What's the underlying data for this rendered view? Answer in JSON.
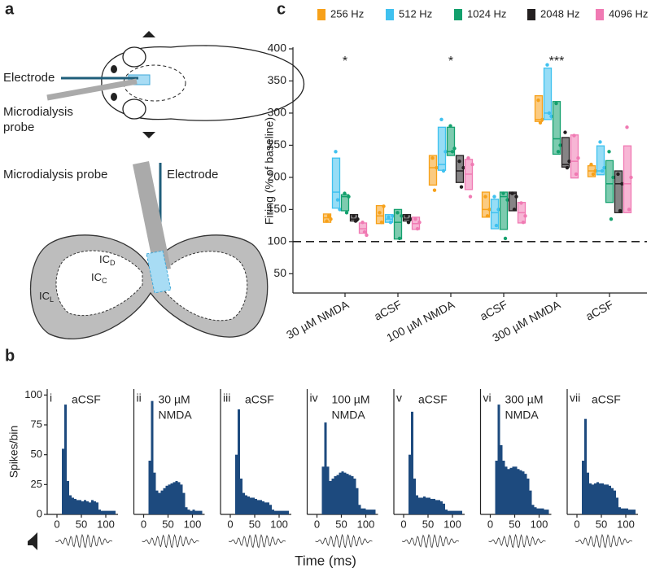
{
  "panel_a": {
    "letter": "a",
    "top_electrode": "Electrode",
    "top_probe": [
      "Microdialysis",
      "probe"
    ],
    "slice_probe": "Microdialysis probe",
    "slice_electrode": "Electrode",
    "icc": {
      "main": "IC",
      "sub": "C"
    },
    "icd": {
      "main": "IC",
      "sub": "D"
    },
    "icl": {
      "main": "IC",
      "sub": "L"
    }
  },
  "panel_b": {
    "letter": "b",
    "y_label": "Spikes/bin",
    "x_label": "Time (ms)"
  },
  "panel_c": {
    "letter": "c"
  },
  "chart_data": [
    {
      "type": "box",
      "y_label": "Firing (% of baseline)",
      "categories": [
        "30 µM NMDA",
        "aCSF",
        "100 µM NMDA",
        "aCSF",
        "300 µM NMDA",
        "aCSF"
      ],
      "significance": [
        "*",
        null,
        "*",
        null,
        "***",
        null
      ],
      "ylim": [
        20,
        400
      ],
      "yticks": [
        50,
        100,
        150,
        200,
        250,
        300,
        350,
        400
      ],
      "reference_line": 100,
      "series": [
        {
          "name": "256 Hz",
          "color": "#f7a11a",
          "q1": [
            130,
            128,
            188,
            138,
            287,
            201
          ],
          "median": [
            137,
            140,
            215,
            150,
            290,
            210
          ],
          "q3": [
            143,
            156,
            234,
            177,
            327,
            218
          ],
          "points": [
            [
              132,
              140,
              135
            ],
            [
              145,
              130,
              155
            ],
            [
              230,
              180,
              215
            ],
            [
              170,
              140,
              150
            ],
            [
              320,
              285,
              290
            ],
            [
              220,
              205,
              210
            ]
          ]
        },
        {
          "name": "512 Hz",
          "color": "#3fc1ef",
          "q1": [
            152,
            130,
            211,
            120,
            290,
            204
          ],
          "median": [
            177,
            135,
            220,
            145,
            300,
            210
          ],
          "q3": [
            230,
            142,
            278,
            166,
            370,
            249
          ],
          "points": [
            [
              240,
              165,
              150
            ],
            [
              138,
              130,
              140
            ],
            [
              290,
              210,
              240
            ],
            [
              170,
              125,
              150
            ],
            [
              375,
              300,
              295
            ],
            [
              255,
              210,
              215
            ]
          ]
        },
        {
          "name": "1024 Hz",
          "color": "#13a06d",
          "q1": [
            148,
            104,
            234,
            119,
            236,
            161
          ],
          "median": [
            170,
            130,
            240,
            170,
            260,
            190
          ],
          "q3": [
            173,
            150,
            278,
            177,
            318,
            226
          ],
          "points": [
            [
              175,
              145,
              170
            ],
            [
              145,
              105,
              140
            ],
            [
              280,
              240,
              245
            ],
            [
              175,
              105,
              165
            ],
            [
              315,
              240,
              250
            ],
            [
              240,
              135,
              200
            ]
          ]
        },
        {
          "name": "2048 Hz",
          "color": "#231f20",
          "q1": [
            132,
            132,
            192,
            148,
            216,
            145
          ],
          "median": [
            135,
            135,
            210,
            175,
            220,
            190
          ],
          "q3": [
            142,
            142,
            234,
            177,
            262,
            210
          ],
          "points": [
            [
              140,
              132,
              135
            ],
            [
              140,
              130,
              135
            ],
            [
              225,
              185,
              215
            ],
            [
              175,
              150,
              170
            ],
            [
              270,
              215,
              225
            ],
            [
              205,
              148,
              190
            ]
          ]
        },
        {
          "name": "4096 Hz",
          "color": "#f07ab3",
          "q1": [
            113,
            119,
            181,
            129,
            199,
            145
          ],
          "median": [
            120,
            128,
            205,
            145,
            225,
            190
          ],
          "q3": [
            129,
            138,
            228,
            161,
            266,
            249
          ],
          "points": [
            [
              130,
              115,
              110
            ],
            [
              135,
              120,
              130
            ],
            [
              230,
              170,
              220
            ],
            [
              160,
              130,
              140
            ],
            [
              265,
              205,
              230
            ],
            [
              278,
              150,
              200
            ]
          ]
        }
      ]
    },
    {
      "type": "histogram",
      "label": "i",
      "title": [
        "aCSF"
      ],
      "color": "#1d4a7e",
      "bins": [
        0,
        5,
        10,
        15,
        20,
        25,
        30,
        35,
        40,
        45,
        50,
        55,
        60,
        65,
        70,
        75,
        80,
        85,
        90,
        95,
        100,
        105,
        110,
        115,
        120
      ],
      "values": [
        0,
        0,
        55,
        92,
        28,
        16,
        14,
        13,
        12,
        12,
        11,
        12,
        11,
        10,
        12,
        11,
        10,
        4,
        3,
        3,
        3,
        3,
        3,
        3
      ],
      "xlim": [
        -20,
        125
      ],
      "xticks": [
        0,
        50,
        100
      ],
      "ylim": [
        0,
        105
      ],
      "yticks": [
        0,
        25,
        50,
        75,
        100
      ]
    },
    {
      "type": "histogram",
      "label": "ii",
      "title": [
        "30 µM",
        "NMDA"
      ],
      "color": "#1d4a7e",
      "bins": [
        0,
        5,
        10,
        15,
        20,
        25,
        30,
        35,
        40,
        45,
        50,
        55,
        60,
        65,
        70,
        75,
        80,
        85,
        90,
        95,
        100,
        105,
        110,
        115,
        120
      ],
      "values": [
        0,
        0,
        45,
        95,
        35,
        20,
        18,
        20,
        22,
        24,
        25,
        26,
        27,
        28,
        27,
        25,
        18,
        6,
        4,
        3,
        4,
        3,
        3,
        3
      ],
      "xlim": [
        -20,
        125
      ],
      "xticks": [
        0,
        50,
        100
      ],
      "ylim": [
        0,
        105
      ]
    },
    {
      "type": "histogram",
      "label": "iii",
      "title": [
        "aCSF"
      ],
      "color": "#1d4a7e",
      "bins": [
        0,
        5,
        10,
        15,
        20,
        25,
        30,
        35,
        40,
        45,
        50,
        55,
        60,
        65,
        70,
        75,
        80,
        85,
        90,
        95,
        100,
        105,
        110,
        115,
        120
      ],
      "values": [
        0,
        0,
        50,
        88,
        30,
        18,
        16,
        15,
        14,
        14,
        13,
        12,
        12,
        11,
        10,
        10,
        8,
        4,
        3,
        3,
        3,
        3,
        3,
        3
      ],
      "xlim": [
        -20,
        125
      ],
      "xticks": [
        0,
        50,
        100
      ],
      "ylim": [
        0,
        105
      ]
    },
    {
      "type": "histogram",
      "label": "iv",
      "title": [
        "100 µM",
        "NMDA"
      ],
      "color": "#1d4a7e",
      "bins": [
        0,
        5,
        10,
        15,
        20,
        25,
        30,
        35,
        40,
        45,
        50,
        55,
        60,
        65,
        70,
        75,
        80,
        85,
        90,
        95,
        100,
        105,
        110,
        115,
        120
      ],
      "values": [
        0,
        0,
        40,
        77,
        40,
        28,
        30,
        32,
        33,
        35,
        36,
        35,
        34,
        33,
        32,
        30,
        22,
        8,
        5,
        5,
        4,
        4,
        4,
        4
      ],
      "xlim": [
        -20,
        125
      ],
      "xticks": [
        0,
        50,
        100
      ],
      "ylim": [
        0,
        105
      ]
    },
    {
      "type": "histogram",
      "label": "v",
      "title": [
        "aCSF"
      ],
      "color": "#1d4a7e",
      "bins": [
        0,
        5,
        10,
        15,
        20,
        25,
        30,
        35,
        40,
        45,
        50,
        55,
        60,
        65,
        70,
        75,
        80,
        85,
        90,
        95,
        100,
        105,
        110,
        115,
        120
      ],
      "values": [
        0,
        0,
        50,
        86,
        30,
        16,
        14,
        14,
        15,
        14,
        14,
        13,
        13,
        12,
        12,
        11,
        9,
        4,
        3,
        3,
        3,
        3,
        3,
        3
      ],
      "xlim": [
        -20,
        125
      ],
      "xticks": [
        0,
        50,
        100
      ],
      "ylim": [
        0,
        105
      ]
    },
    {
      "type": "histogram",
      "label": "vi",
      "title": [
        "300 µM",
        "NMDA"
      ],
      "color": "#1d4a7e",
      "bins": [
        0,
        5,
        10,
        15,
        20,
        25,
        30,
        35,
        40,
        45,
        50,
        55,
        60,
        65,
        70,
        75,
        80,
        85,
        90,
        95,
        100,
        105,
        110,
        115,
        120
      ],
      "values": [
        0,
        0,
        45,
        92,
        58,
        45,
        40,
        38,
        39,
        40,
        40,
        38,
        37,
        36,
        34,
        30,
        20,
        8,
        6,
        5,
        5,
        5,
        4,
        4
      ],
      "xlim": [
        -20,
        125
      ],
      "xticks": [
        0,
        50,
        100
      ],
      "ylim": [
        0,
        105
      ]
    },
    {
      "type": "histogram",
      "label": "vii",
      "title": [
        "aCSF"
      ],
      "color": "#1d4a7e",
      "bins": [
        0,
        5,
        10,
        15,
        20,
        25,
        30,
        35,
        40,
        45,
        50,
        55,
        60,
        65,
        70,
        75,
        80,
        85,
        90,
        95,
        100,
        105,
        110,
        115,
        120
      ],
      "values": [
        0,
        0,
        45,
        80,
        35,
        26,
        25,
        26,
        27,
        26,
        26,
        25,
        25,
        24,
        22,
        20,
        14,
        6,
        5,
        5,
        5,
        4,
        4,
        4
      ],
      "xlim": [
        -20,
        125
      ],
      "xticks": [
        0,
        50,
        100
      ],
      "ylim": [
        0,
        105
      ]
    }
  ]
}
